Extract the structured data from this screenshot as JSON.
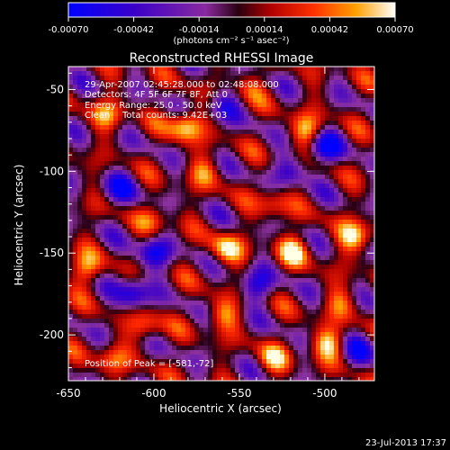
{
  "colorbar": {
    "tick_labels": [
      "-0.00070",
      "-0.00042",
      "-0.00014",
      "0.00014",
      "0.00042",
      "0.00070"
    ],
    "range": [
      -0.0007,
      0.0007
    ],
    "unit_label": "(photons cm⁻² s⁻¹ asec⁻²)"
  },
  "chart_data": {
    "type": "heatmap",
    "title": "Reconstructed RHESSI Image",
    "xlabel": "Heliocentric X (arcsec)",
    "ylabel": "Heliocentric Y (arcsec)",
    "xlim": [
      -650,
      -471
    ],
    "ylim": [
      -228,
      -36
    ],
    "x_ticks": [
      -650,
      -600,
      -550,
      -500
    ],
    "y_ticks": [
      -50,
      -100,
      -150,
      -200
    ],
    "colormap": "rhessi-blue-purple-red-yellow",
    "annotations": [
      "29-Apr-2007 02:45:28.000 to 02:48:08.000",
      "Detectors: 4F 5F 6F 7F 8F, Att 0",
      "Energy Range: 25.0 - 50.0 keV",
      "Clean",
      "Total counts: 9.42E+03"
    ],
    "peak_label": "Position of Peak = [-581,-72]",
    "peak": [
      -581,
      -72
    ],
    "blobs": [
      {
        "x": -581,
        "y": -72,
        "v": 1.0
      },
      {
        "x": -510,
        "y": -75,
        "v": 0.75
      },
      {
        "x": -627,
        "y": -65,
        "v": 0.6
      },
      {
        "x": -544,
        "y": -47,
        "v": 0.4
      },
      {
        "x": -530,
        "y": -120,
        "v": 0.55
      },
      {
        "x": -482,
        "y": -140,
        "v": 0.9
      },
      {
        "x": -558,
        "y": -148,
        "v": 0.8
      },
      {
        "x": -518,
        "y": -148,
        "v": 0.75
      },
      {
        "x": -640,
        "y": -160,
        "v": 0.7
      },
      {
        "x": -570,
        "y": -100,
        "v": 0.5
      },
      {
        "x": -605,
        "y": -195,
        "v": 0.6
      },
      {
        "x": -560,
        "y": -188,
        "v": 0.65
      },
      {
        "x": -498,
        "y": -205,
        "v": 0.85
      },
      {
        "x": -625,
        "y": -215,
        "v": 0.55
      },
      {
        "x": -530,
        "y": -215,
        "v": 0.6
      },
      {
        "x": -600,
        "y": -130,
        "v": 0.45
      },
      {
        "x": -490,
        "y": -180,
        "v": 0.5
      },
      {
        "x": -600,
        "y": -150,
        "v": -0.8
      },
      {
        "x": -500,
        "y": -85,
        "v": -0.9
      },
      {
        "x": -612,
        "y": -175,
        "v": -0.85
      },
      {
        "x": -540,
        "y": -170,
        "v": -0.7
      },
      {
        "x": -560,
        "y": -60,
        "v": -0.6
      },
      {
        "x": -620,
        "y": -110,
        "v": -0.65
      },
      {
        "x": -520,
        "y": -100,
        "v": -0.55
      },
      {
        "x": -480,
        "y": -210,
        "v": -0.6
      }
    ]
  },
  "footer": {
    "timestamp": "23-Jul-2013 17:37"
  }
}
